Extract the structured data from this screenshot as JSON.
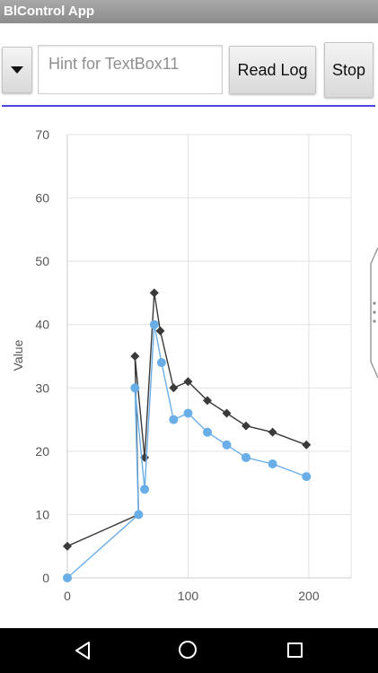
{
  "app": {
    "title": "BlControl App"
  },
  "toolbar": {
    "dropdown_icon": "caret-down-icon",
    "textbox_placeholder": "Hint for TextBox11",
    "textbox_value": "",
    "read_log_label": "Read Log",
    "stop_label": "Stop"
  },
  "colors": {
    "accent_line": "#4a4ae0",
    "series_dark": "#3a3a3a",
    "series_light": "#6aaee8"
  },
  "navbar": {
    "icons": [
      "back-icon",
      "home-icon",
      "recent-apps-icon"
    ]
  },
  "chart_data": {
    "type": "line",
    "title": "",
    "xlabel": "",
    "ylabel": "Value",
    "xlim": [
      0,
      235
    ],
    "ylim": [
      0,
      70
    ],
    "xticks": [
      0,
      100,
      200
    ],
    "yticks": [
      0,
      10,
      20,
      30,
      40,
      50,
      60,
      70
    ],
    "grid": true,
    "legend": "none",
    "series": [
      {
        "color": "#3a3a3a",
        "marker": "diamond",
        "points": [
          [
            0,
            5
          ],
          [
            59,
            10
          ],
          [
            56,
            35
          ],
          [
            64,
            19
          ],
          [
            72,
            45
          ],
          [
            77,
            39
          ],
          [
            88,
            30
          ],
          [
            100,
            31
          ],
          [
            116,
            28
          ],
          [
            132,
            26
          ],
          [
            148,
            24
          ],
          [
            170,
            23
          ],
          [
            198,
            21
          ]
        ]
      },
      {
        "color": "#6aaee8",
        "marker": "circle",
        "points": [
          [
            0,
            0
          ],
          [
            59,
            10
          ],
          [
            56,
            30
          ],
          [
            64,
            14
          ],
          [
            72,
            40
          ],
          [
            78,
            34
          ],
          [
            88,
            25
          ],
          [
            100,
            26
          ],
          [
            116,
            23
          ],
          [
            132,
            21
          ],
          [
            148,
            19
          ],
          [
            170,
            18
          ],
          [
            198,
            16
          ]
        ]
      }
    ]
  }
}
